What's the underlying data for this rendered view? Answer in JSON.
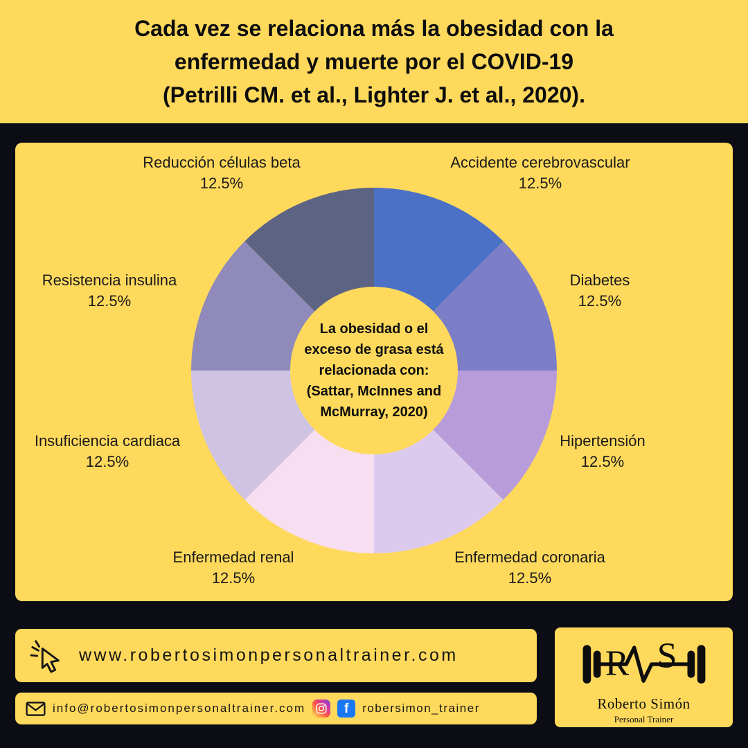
{
  "title": "Cada vez se relaciona más la obesidad con la\nenfermedad y muerte por el COVID-19\n(Petrilli CM. et al., Lighter J. et al., 2020).",
  "chart_data": {
    "type": "pie",
    "donut": true,
    "start_angle_deg": 0,
    "center_text": "La obesidad o el\nexceso de grasa está\nrelacionada con:\n(Sattar, McInnes and\nMcMurray, 2020)",
    "segments": [
      {
        "label": "Accidente cerebrovascular",
        "pct": "12.5%",
        "value": 12.5,
        "color": "#4a71c6"
      },
      {
        "label": "Diabetes",
        "pct": "12.5%",
        "value": 12.5,
        "color": "#7c7ec8"
      },
      {
        "label": "Hipertensión",
        "pct": "12.5%",
        "value": 12.5,
        "color": "#b79cd9"
      },
      {
        "label": "Enfermedad coronaria",
        "pct": "12.5%",
        "value": 12.5,
        "color": "#dbcaee"
      },
      {
        "label": "Enfermedad renal",
        "pct": "12.5%",
        "value": 12.5,
        "color": "#f7def0"
      },
      {
        "label": "Insuficiencia cardiaca",
        "pct": "12.5%",
        "value": 12.5,
        "color": "#cec3e2"
      },
      {
        "label": "Resistencia insulina",
        "pct": "12.5%",
        "value": 12.5,
        "color": "#8f8aba"
      },
      {
        "label": "Reducción células beta",
        "pct": "12.5%",
        "value": 12.5,
        "color": "#5d6383"
      }
    ]
  },
  "footer": {
    "website": "www.robertosimonpersonaltrainer.com",
    "email": "info@robertosimonpersonaltrainer.com",
    "social_handle": "robersimon_trainer",
    "facebook_glyph": "f"
  },
  "logo": {
    "initial_r": "R",
    "initial_s": "S",
    "name": "Roberto Simón",
    "subtitle": "Personal Trainer"
  },
  "icons": {
    "click": "cursor-click",
    "mail": "envelope-outline",
    "instagram": "camera-gradient-square",
    "facebook": "f-blue-square",
    "logo": "dumbbell-pulse"
  },
  "colors": {
    "yellow": "#ffd95c",
    "background_black": "#0c0c14",
    "facebook_blue": "#1877f2"
  }
}
